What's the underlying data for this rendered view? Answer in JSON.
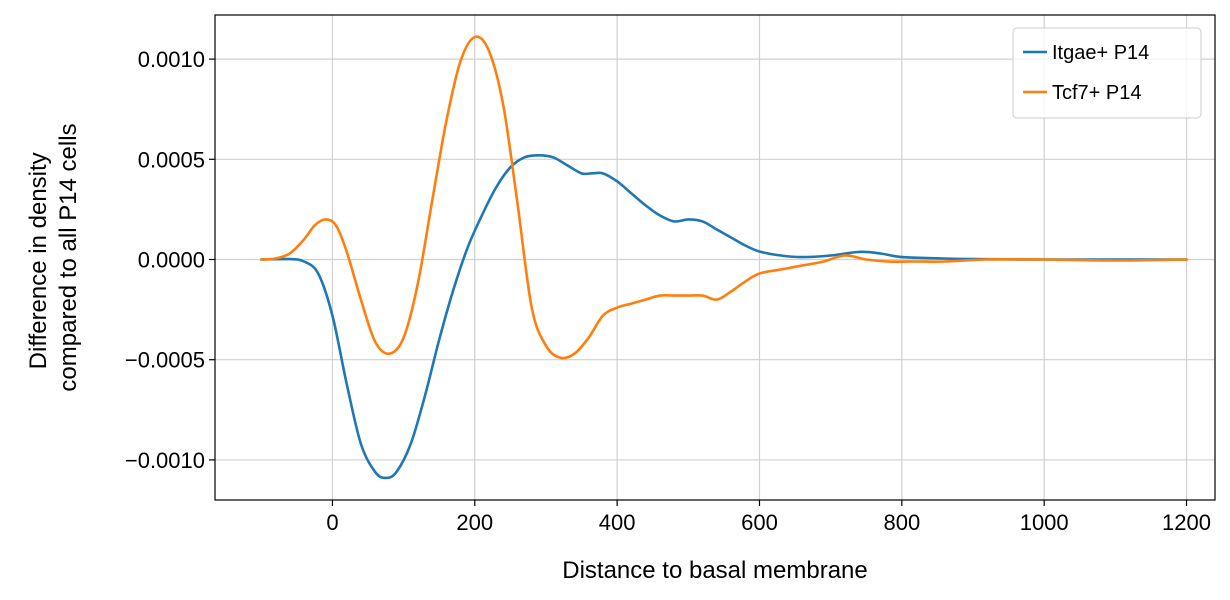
{
  "chart_data": {
    "type": "line",
    "xlabel": "Distance to basal membrane",
    "ylabel_lines": [
      "Difference in density",
      "compared to all P14 cells"
    ],
    "xlim": [
      -165,
      1240
    ],
    "ylim": [
      -0.0012,
      0.00122
    ],
    "xticks": [
      0,
      200,
      400,
      600,
      800,
      1000,
      1200
    ],
    "xtick_labels": [
      "0",
      "200",
      "400",
      "600",
      "800",
      "1000",
      "1200"
    ],
    "yticks": [
      -0.001,
      -0.0005,
      0,
      0.0005,
      0.001
    ],
    "ytick_labels": [
      "−0.0010",
      "−0.0005",
      "0.0000",
      "0.0005",
      "0.0010"
    ],
    "grid": true,
    "legend_position": "top-right",
    "series": [
      {
        "name": "Itgae+ P14",
        "color": "#1f77b4",
        "points": [
          [
            -100,
            0
          ],
          [
            -60,
            2e-06
          ],
          [
            -40,
            -1e-05
          ],
          [
            -20,
            -7e-05
          ],
          [
            0,
            -0.00028
          ],
          [
            20,
            -0.00062
          ],
          [
            40,
            -0.00092
          ],
          [
            60,
            -0.00106
          ],
          [
            75,
            -0.00109
          ],
          [
            90,
            -0.00106
          ],
          [
            110,
            -0.00092
          ],
          [
            130,
            -0.00068
          ],
          [
            150,
            -0.0004
          ],
          [
            170,
            -0.00015
          ],
          [
            190,
            6e-05
          ],
          [
            210,
            0.00022
          ],
          [
            230,
            0.00036
          ],
          [
            250,
            0.00046
          ],
          [
            270,
            0.00051
          ],
          [
            290,
            0.00052
          ],
          [
            310,
            0.00051
          ],
          [
            330,
            0.00047
          ],
          [
            350,
            0.00043
          ],
          [
            365,
            0.00043
          ],
          [
            380,
            0.00043
          ],
          [
            400,
            0.00039
          ],
          [
            420,
            0.00033
          ],
          [
            440,
            0.00027
          ],
          [
            460,
            0.00022
          ],
          [
            480,
            0.00019
          ],
          [
            500,
            0.0002
          ],
          [
            520,
            0.00019
          ],
          [
            540,
            0.00015
          ],
          [
            560,
            0.00011
          ],
          [
            580,
            7e-05
          ],
          [
            600,
            4e-05
          ],
          [
            630,
            2e-05
          ],
          [
            660,
            1.2e-05
          ],
          [
            700,
            2e-05
          ],
          [
            740,
            3.8e-05
          ],
          [
            770,
            3e-05
          ],
          [
            800,
            1.2e-05
          ],
          [
            850,
            6e-06
          ],
          [
            900,
            2e-06
          ],
          [
            1000,
            0
          ],
          [
            1100,
            0
          ],
          [
            1200,
            0
          ]
        ]
      },
      {
        "name": "Tcf7+ P14",
        "color": "#ff7f0e",
        "points": [
          [
            -100,
            0
          ],
          [
            -80,
            5e-06
          ],
          [
            -60,
            3e-05
          ],
          [
            -40,
            0.0001
          ],
          [
            -25,
            0.00017
          ],
          [
            -10,
            0.0002
          ],
          [
            5,
            0.00017
          ],
          [
            20,
            4e-05
          ],
          [
            40,
            -0.0002
          ],
          [
            60,
            -0.00041
          ],
          [
            80,
            -0.00047
          ],
          [
            100,
            -0.00039
          ],
          [
            120,
            -0.00012
          ],
          [
            140,
            0.00029
          ],
          [
            160,
            0.00069
          ],
          [
            180,
            0.00099
          ],
          [
            200,
            0.00111
          ],
          [
            220,
            0.00104
          ],
          [
            240,
            0.00077
          ],
          [
            260,
            0.00028
          ],
          [
            280,
            -0.00024
          ],
          [
            300,
            -0.00043
          ],
          [
            320,
            -0.00049
          ],
          [
            340,
            -0.00047
          ],
          [
            360,
            -0.00039
          ],
          [
            380,
            -0.00028
          ],
          [
            400,
            -0.00024
          ],
          [
            420,
            -0.00022
          ],
          [
            440,
            -0.0002
          ],
          [
            460,
            -0.00018
          ],
          [
            480,
            -0.00018
          ],
          [
            500,
            -0.00018
          ],
          [
            520,
            -0.00018
          ],
          [
            540,
            -0.0002
          ],
          [
            560,
            -0.00016
          ],
          [
            580,
            -0.00011
          ],
          [
            600,
            -7e-05
          ],
          [
            630,
            -5e-05
          ],
          [
            660,
            -3e-05
          ],
          [
            690,
            -1e-05
          ],
          [
            720,
            2e-05
          ],
          [
            750,
            0
          ],
          [
            780,
            -1e-05
          ],
          [
            820,
            -1e-05
          ],
          [
            860,
            -1e-05
          ],
          [
            920,
            0
          ],
          [
            1000,
            0
          ],
          [
            1100,
            -5e-06
          ],
          [
            1200,
            0
          ]
        ]
      }
    ]
  }
}
